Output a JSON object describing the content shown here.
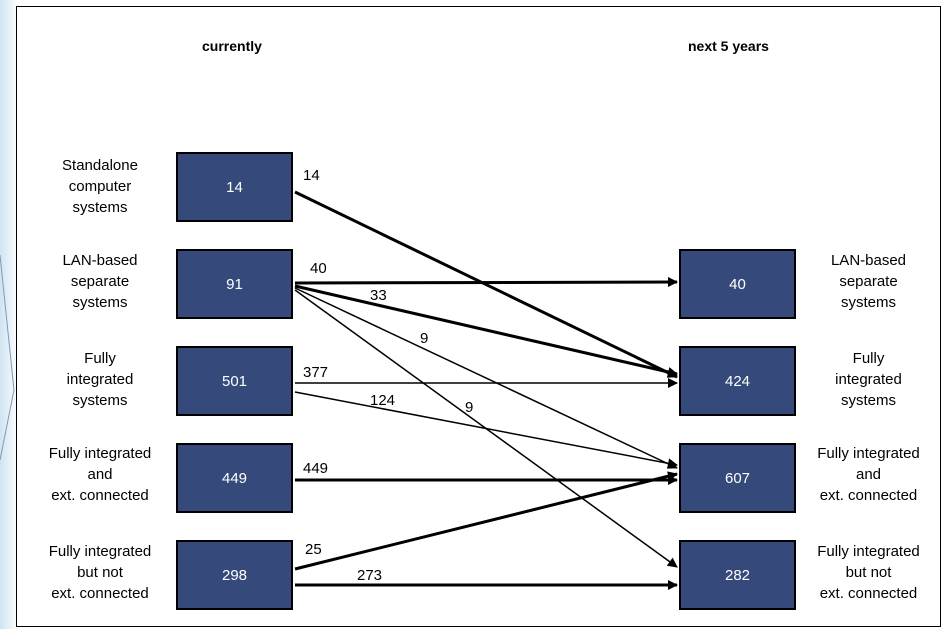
{
  "headers": {
    "current": "currently",
    "future": "next 5 years"
  },
  "current_nodes": [
    {
      "label": "Standalone\ncomputer\nsystems",
      "value": "14"
    },
    {
      "label": "LAN-based\nseparate\nsystems",
      "value": "91"
    },
    {
      "label": "Fully\nintegrated\nsystems",
      "value": "501"
    },
    {
      "label": "Fully integrated\nand\next. connected",
      "value": "449"
    },
    {
      "label": "Fully integrated\nbut not\next. connected",
      "value": "298"
    }
  ],
  "future_nodes": [
    {
      "label": "LAN-based\nseparate\nsystems",
      "value": "40"
    },
    {
      "label": "Fully\nintegrated\nsystems",
      "value": "424"
    },
    {
      "label": "Fully integrated\nand\next. connected",
      "value": "607"
    },
    {
      "label": "Fully integrated\nbut not\next. connected",
      "value": "282"
    }
  ],
  "flows": [
    {
      "from": 0,
      "to": 1,
      "value": "14",
      "thick": true
    },
    {
      "from": 1,
      "to": 0,
      "value": "40",
      "thick": true
    },
    {
      "from": 1,
      "to": 1,
      "value": "33",
      "thick": true
    },
    {
      "from": 1,
      "to": 2,
      "value": "9",
      "thick": false
    },
    {
      "from": 1,
      "to": 3,
      "value": "9",
      "thick": false
    },
    {
      "from": 2,
      "to": 1,
      "value": "377",
      "thick": false
    },
    {
      "from": 2,
      "to": 2,
      "value": "124",
      "thick": false
    },
    {
      "from": 3,
      "to": 2,
      "value": "449",
      "thick": true
    },
    {
      "from": 4,
      "to": 2,
      "value": "25",
      "thick": true
    },
    {
      "from": 4,
      "to": 3,
      "value": "273",
      "thick": true
    }
  ]
}
